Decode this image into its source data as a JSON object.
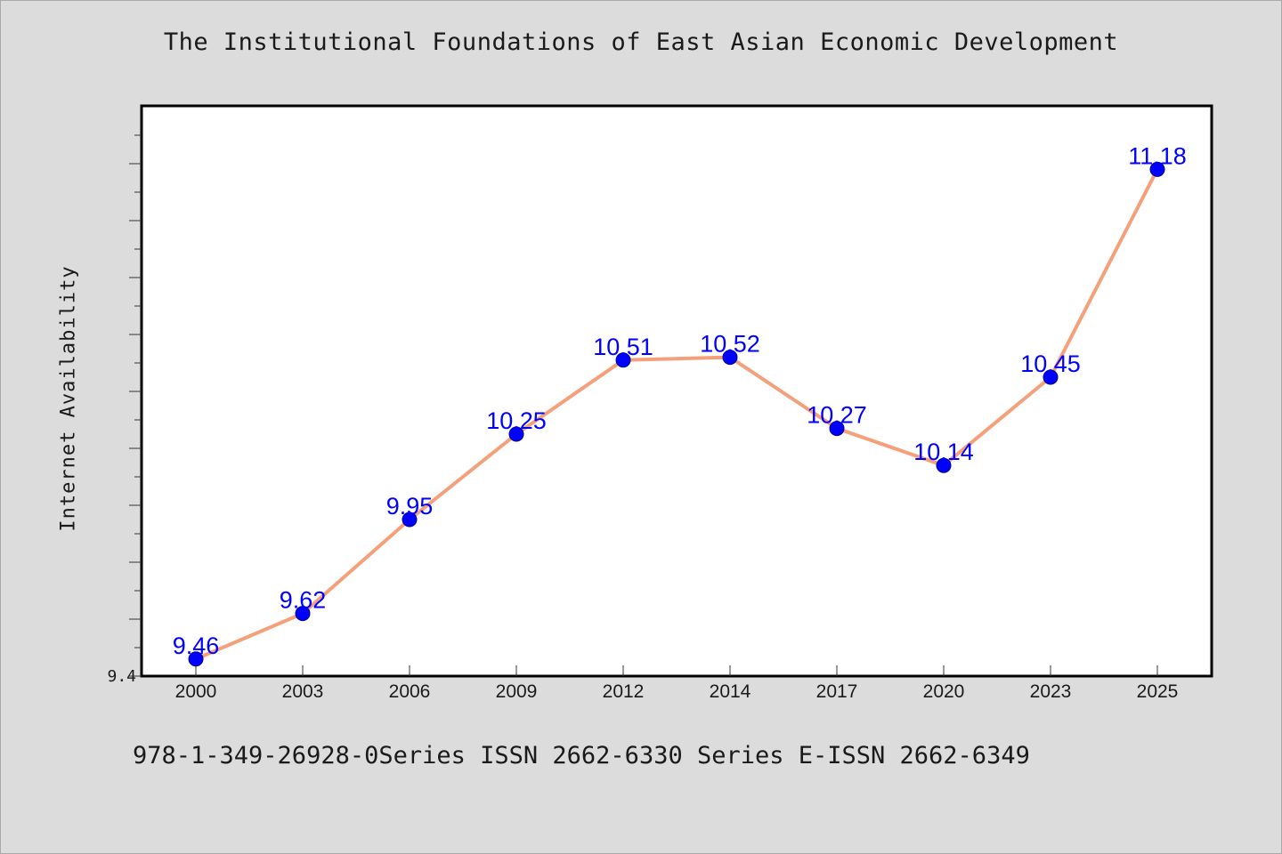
{
  "chart_data": {
    "type": "line",
    "title": "The Institutional Foundations of East Asian Economic Development",
    "xlabel": "",
    "ylabel": "Internet Availability",
    "categories": [
      "2000",
      "2003",
      "2006",
      "2009",
      "2012",
      "2014",
      "2017",
      "2020",
      "2023",
      "2025"
    ],
    "series": [
      {
        "values": [
          9.46,
          9.62,
          9.95,
          10.25,
          10.51,
          10.52,
          10.27,
          10.14,
          10.45,
          11.18
        ],
        "labels": [
          "9.46",
          "9.62",
          "9.95",
          "10.25",
          "10.51",
          "10.52",
          "10.27",
          "10.14",
          "10.45",
          "11.18"
        ]
      }
    ],
    "ylim": [
      9.4,
      11.4
    ],
    "y_tick_labels": [
      "9.4"
    ],
    "grid": false,
    "line_color": "#f4a07a",
    "marker_color": "#0000ff",
    "label_color": "#0000ff"
  },
  "footer": "978-1-349-26928-0Series ISSN 2662-6330 Series E-ISSN 2662-6349"
}
